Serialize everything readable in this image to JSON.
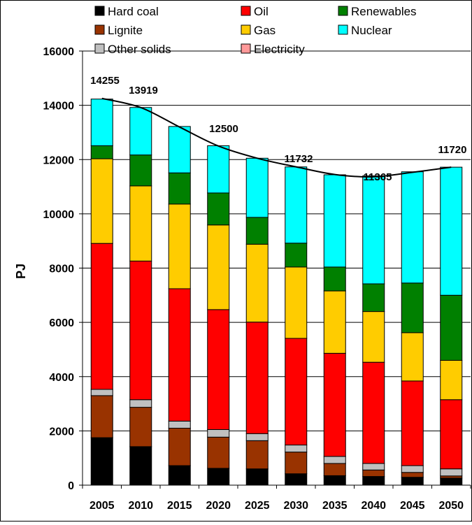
{
  "chart_data": {
    "type": "bar",
    "stacked": true,
    "title": "",
    "xlabel": "",
    "ylabel": "PJ",
    "ylim": [
      0,
      16000
    ],
    "yticks": [
      0,
      2000,
      4000,
      6000,
      8000,
      10000,
      12000,
      14000,
      16000
    ],
    "grid": "horizontal major gridlines",
    "legend_position": "top",
    "categories": [
      "2005",
      "2010",
      "2015",
      "2020",
      "2025",
      "2030",
      "2035",
      "2040",
      "2045",
      "2050"
    ],
    "series": [
      {
        "name": "Hard coal",
        "color": "#000000",
        "values": [
          1750,
          1420,
          720,
          620,
          600,
          420,
          350,
          320,
          290,
          260
        ]
      },
      {
        "name": "Lignite",
        "color": "#993300",
        "values": [
          1550,
          1450,
          1380,
          1150,
          1040,
          800,
          450,
          240,
          180,
          80
        ]
      },
      {
        "name": "Other solids",
        "color": "#C0C0C0",
        "values": [
          230,
          280,
          260,
          280,
          260,
          260,
          260,
          240,
          250,
          260
        ]
      },
      {
        "name": "Oil",
        "color": "#FF0000",
        "values": [
          5380,
          5110,
          4880,
          4420,
          4110,
          3930,
          3800,
          3730,
          3120,
          2550
        ]
      },
      {
        "name": "Gas",
        "color": "#FFCC00",
        "values": [
          3120,
          2770,
          3120,
          3120,
          2870,
          2630,
          2300,
          1870,
          1780,
          1450
        ]
      },
      {
        "name": "Electricity",
        "color": "#FF9999",
        "values": [
          0,
          0,
          0,
          0,
          0,
          0,
          0,
          0,
          0,
          0
        ]
      },
      {
        "name": "Renewables",
        "color": "#008000",
        "values": [
          480,
          1140,
          1150,
          1180,
          990,
          880,
          880,
          1020,
          1830,
          2400
        ]
      },
      {
        "name": "Nuclear",
        "color": "#00FFFF",
        "values": [
          1720,
          1750,
          1710,
          1740,
          2180,
          2810,
          3400,
          3980,
          4100,
          4720
        ]
      }
    ],
    "totals_line": {
      "x": [
        "2005",
        "2010",
        "2015",
        "2020",
        "2025",
        "2030",
        "2035",
        "2040",
        "2045",
        "2050"
      ],
      "values": [
        14255,
        13919,
        13200,
        12500,
        12050,
        11732,
        11450,
        11365,
        11530,
        11720
      ]
    },
    "total_labels": [
      {
        "category": "2005",
        "text": "14255"
      },
      {
        "category": "2010",
        "text": "13919"
      },
      {
        "category": "2020",
        "text": "12500"
      },
      {
        "category": "2030",
        "text": "11732"
      },
      {
        "category": "2040",
        "text": "11365"
      },
      {
        "category": "2050",
        "text": "11720"
      }
    ]
  }
}
